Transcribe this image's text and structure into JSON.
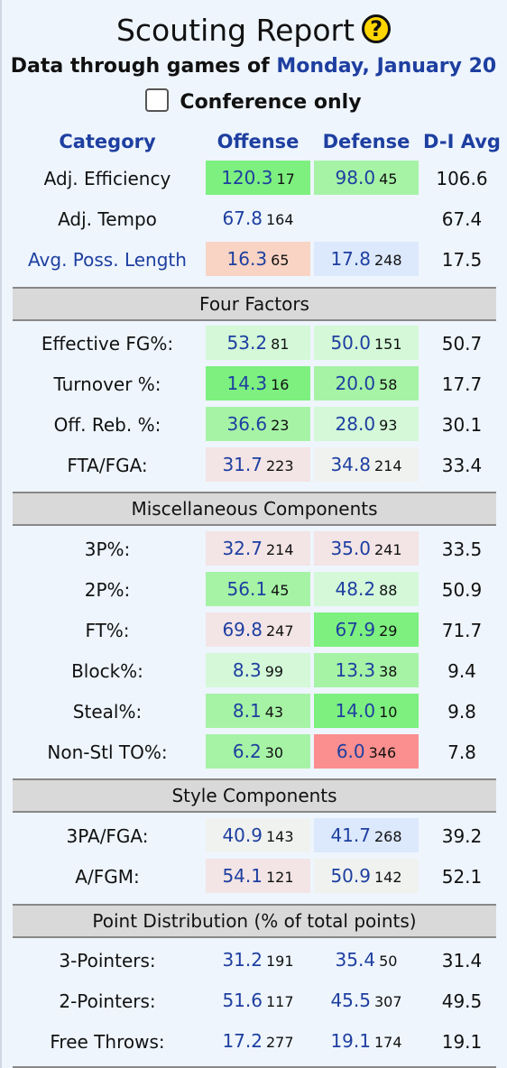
{
  "title": "Scouting Report",
  "help_icon": "question-mark-icon",
  "subtitle_prefix": "Data through games of",
  "subtitle_date": "Monday, January 20",
  "conference_only_label": "Conference only",
  "conference_only_checked": false,
  "headers": {
    "category": "Category",
    "offense": "Offense",
    "defense": "Defense",
    "avg": "D-I Avg"
  },
  "colors": {
    "link_blue": "#1e3fa0",
    "section_gray": "#d9d9d9",
    "good_strong": "#7df07f",
    "good": "#a6f3a6",
    "good_light": "#d4f8d8",
    "neutral": "#f0f2f0",
    "bad_light": "#f3e4e6",
    "bad": "#f9d4c4",
    "bad_strong": "#fb8f8f",
    "blue_light": "#dce8fc"
  },
  "top_rows": [
    {
      "label": "Adj. Efficiency",
      "link": false,
      "off": "120.3",
      "off_rank": "17",
      "def": "98.0",
      "def_rank": "45",
      "avg": "106.6"
    },
    {
      "label": "Adj. Tempo",
      "link": false,
      "off": "67.8",
      "off_rank": "164",
      "def": "",
      "def_rank": "",
      "avg": "67.4"
    },
    {
      "label": "Avg. Poss. Length",
      "link": true,
      "off": "16.3",
      "off_rank": "65",
      "def": "17.8",
      "def_rank": "248",
      "avg": "17.5"
    }
  ],
  "sections": {
    "four_factors": "Four Factors",
    "misc": "Miscellaneous Components",
    "style": "Style Components",
    "point_dist": "Point Distribution (% of total points)"
  },
  "four_factors": [
    {
      "label": "Effective FG%:",
      "off": "53.2",
      "off_rank": "81",
      "def": "50.0",
      "def_rank": "151",
      "avg": "50.7"
    },
    {
      "label": "Turnover %:",
      "off": "14.3",
      "off_rank": "16",
      "def": "20.0",
      "def_rank": "58",
      "avg": "17.7"
    },
    {
      "label": "Off. Reb. %:",
      "off": "36.6",
      "off_rank": "23",
      "def": "28.0",
      "def_rank": "93",
      "avg": "30.1"
    },
    {
      "label": "FTA/FGA:",
      "off": "31.7",
      "off_rank": "223",
      "def": "34.8",
      "def_rank": "214",
      "avg": "33.4"
    }
  ],
  "misc": [
    {
      "label": "3P%:",
      "off": "32.7",
      "off_rank": "214",
      "def": "35.0",
      "def_rank": "241",
      "avg": "33.5"
    },
    {
      "label": "2P%:",
      "off": "56.1",
      "off_rank": "45",
      "def": "48.2",
      "def_rank": "88",
      "avg": "50.9"
    },
    {
      "label": "FT%:",
      "off": "69.8",
      "off_rank": "247",
      "def": "67.9",
      "def_rank": "29",
      "avg": "71.7"
    },
    {
      "label": "Block%:",
      "off": "8.3",
      "off_rank": "99",
      "def": "13.3",
      "def_rank": "38",
      "avg": "9.4"
    },
    {
      "label": "Steal%:",
      "off": "8.1",
      "off_rank": "43",
      "def": "14.0",
      "def_rank": "10",
      "avg": "9.8"
    },
    {
      "label": "Non-Stl TO%:",
      "off": "6.2",
      "off_rank": "30",
      "def": "6.0",
      "def_rank": "346",
      "avg": "7.8"
    }
  ],
  "style": [
    {
      "label": "3PA/FGA:",
      "off": "40.9",
      "off_rank": "143",
      "def": "41.7",
      "def_rank": "268",
      "avg": "39.2"
    },
    {
      "label": "A/FGM:",
      "off": "54.1",
      "off_rank": "121",
      "def": "50.9",
      "def_rank": "142",
      "avg": "52.1"
    }
  ],
  "point_dist": [
    {
      "label": "3-Pointers:",
      "off": "31.2",
      "off_rank": "191",
      "def": "35.4",
      "def_rank": "50",
      "avg": "31.4"
    },
    {
      "label": "2-Pointers:",
      "off": "51.6",
      "off_rank": "117",
      "def": "45.5",
      "def_rank": "307",
      "avg": "49.5"
    },
    {
      "label": "Free Throws:",
      "off": "17.2",
      "off_rank": "277",
      "def": "19.1",
      "def_rank": "174",
      "avg": "19.1"
    }
  ]
}
